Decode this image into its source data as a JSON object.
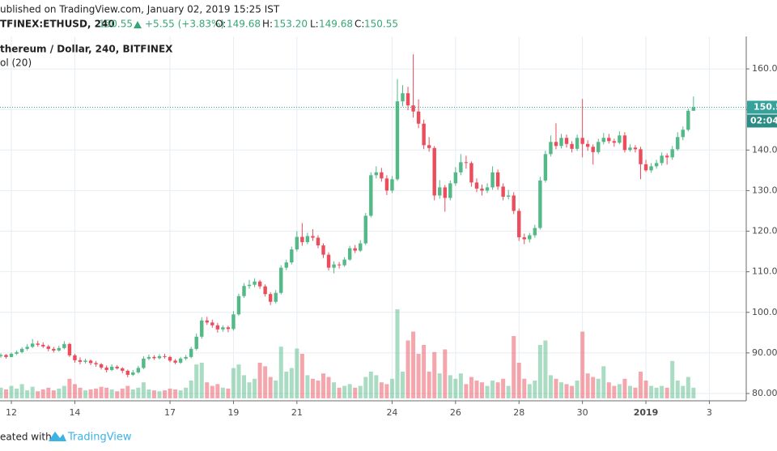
{
  "header": {
    "published": "ublished on TradingView.com, January 02, 2019 15:25 IST",
    "symbol": "TFINEX:ETHUSD, 240",
    "price": "150.55",
    "change": "+5.55 (+3.83%)",
    "ohlc": [
      {
        "key": "O:",
        "value": "149.68"
      },
      {
        "key": "H:",
        "value": "153.20"
      },
      {
        "key": "L:",
        "value": "149.68"
      },
      {
        "key": "C:",
        "value": "150.55"
      }
    ]
  },
  "footer": {
    "text": "eated with",
    "brand": "TradingView"
  },
  "chart_data": {
    "type": "candlestick",
    "title": "thereum / Dollar, 240, BITFINEX",
    "volume_label": "ol (20)",
    "up_color": "#53b987",
    "down_color": "#eb4d5c",
    "grid": true,
    "countdown": "02:04:",
    "xlim": [
      -8.6,
      555.9
    ],
    "ylim": [
      78.2,
      168
    ],
    "volume_lim": [
      0,
      100
    ],
    "xticks": [
      {
        "value": 0,
        "label": "12"
      },
      {
        "value": 48,
        "label": "14"
      },
      {
        "value": 120,
        "label": "17"
      },
      {
        "value": 168,
        "label": "19"
      },
      {
        "value": 216,
        "label": "21"
      },
      {
        "value": 288,
        "label": "24"
      },
      {
        "value": 336,
        "label": "26"
      },
      {
        "value": 384,
        "label": "28"
      },
      {
        "value": 432,
        "label": "30"
      },
      {
        "value": 480,
        "label": "2019"
      },
      {
        "value": 528,
        "label": "3"
      }
    ],
    "yticks": [
      {
        "value": 80,
        "label": "80.00"
      },
      {
        "value": 90,
        "label": "90.00"
      },
      {
        "value": 100,
        "label": "100.00"
      },
      {
        "value": 110,
        "label": "110.00"
      },
      {
        "value": 120,
        "label": "120.00"
      },
      {
        "value": 130,
        "label": "130.00"
      },
      {
        "value": 140,
        "label": "140.00"
      },
      {
        "value": 150,
        "label": "150.00"
      },
      {
        "value": 160,
        "label": "160.00"
      }
    ],
    "candles": [
      [
        -8,
        89.2,
        89.9,
        88.8,
        89.5,
        12
      ],
      [
        -4,
        89.5,
        89.7,
        88.6,
        89.0,
        10
      ],
      [
        0,
        89.0,
        90.1,
        88.9,
        89.8,
        14
      ],
      [
        4,
        89.8,
        90.6,
        89.5,
        90.2,
        11
      ],
      [
        8,
        90.2,
        91.4,
        89.9,
        91.0,
        16
      ],
      [
        12,
        91.0,
        92.2,
        90.6,
        91.5,
        9
      ],
      [
        16,
        91.5,
        93.4,
        91.2,
        92.3,
        13
      ],
      [
        20,
        92.3,
        93.0,
        91.5,
        92.0,
        8
      ],
      [
        24,
        92.0,
        92.6,
        91.2,
        91.6,
        10
      ],
      [
        28,
        91.6,
        92.0,
        90.4,
        91.0,
        12
      ],
      [
        32,
        91.0,
        91.5,
        90.1,
        90.6,
        9
      ],
      [
        36,
        90.6,
        91.8,
        90.3,
        91.2,
        11
      ],
      [
        40,
        91.2,
        92.9,
        90.9,
        92.2,
        14
      ],
      [
        44,
        92.2,
        92.5,
        89.0,
        89.4,
        22
      ],
      [
        48,
        89.4,
        89.8,
        87.6,
        88.2,
        16
      ],
      [
        52,
        88.2,
        88.9,
        87.2,
        87.8,
        12
      ],
      [
        56,
        87.8,
        88.6,
        87.4,
        88.1,
        9
      ],
      [
        60,
        88.1,
        88.4,
        87.0,
        87.5,
        10
      ],
      [
        64,
        87.5,
        88.0,
        86.6,
        87.2,
        11
      ],
      [
        68,
        87.2,
        87.5,
        85.9,
        86.4,
        13
      ],
      [
        72,
        86.4,
        86.9,
        85.2,
        85.8,
        12
      ],
      [
        76,
        85.8,
        87.2,
        85.5,
        86.6,
        10
      ],
      [
        80,
        86.6,
        87.0,
        85.9,
        86.2,
        8
      ],
      [
        84,
        86.2,
        86.5,
        85.0,
        85.6,
        11
      ],
      [
        88,
        85.6,
        85.9,
        84.0,
        84.6,
        14
      ],
      [
        92,
        84.6,
        85.8,
        84.3,
        85.2,
        10
      ],
      [
        96,
        85.2,
        86.8,
        84.9,
        86.3,
        12
      ],
      [
        100,
        86.3,
        89.2,
        86.0,
        88.6,
        18
      ],
      [
        104,
        88.6,
        89.6,
        88.2,
        89.0,
        10
      ],
      [
        108,
        89.0,
        89.4,
        88.3,
        88.7,
        9
      ],
      [
        112,
        88.7,
        89.7,
        88.4,
        89.2,
        8
      ],
      [
        116,
        89.2,
        89.8,
        88.6,
        89.0,
        9
      ],
      [
        120,
        89.0,
        89.3,
        87.7,
        88.1,
        11
      ],
      [
        124,
        88.1,
        88.5,
        87.2,
        87.6,
        10
      ],
      [
        128,
        87.6,
        89.0,
        87.3,
        88.6,
        9
      ],
      [
        132,
        88.6,
        89.5,
        88.2,
        89.0,
        12
      ],
      [
        136,
        89.0,
        91.5,
        88.7,
        91.0,
        20
      ],
      [
        140,
        91.0,
        94.8,
        90.6,
        94.0,
        38
      ],
      [
        144,
        94.0,
        98.8,
        93.5,
        98.0,
        40
      ],
      [
        148,
        98.0,
        98.9,
        96.9,
        97.5,
        18
      ],
      [
        152,
        97.5,
        98.2,
        96.2,
        96.8,
        14
      ],
      [
        156,
        96.8,
        97.4,
        95.0,
        95.8,
        16
      ],
      [
        160,
        95.8,
        96.8,
        95.2,
        96.3,
        12
      ],
      [
        164,
        96.3,
        96.7,
        95.1,
        95.9,
        11
      ],
      [
        168,
        95.9,
        100.3,
        95.5,
        99.5,
        34
      ],
      [
        172,
        99.5,
        104.6,
        99.2,
        104.0,
        38
      ],
      [
        176,
        104.0,
        107.2,
        103.6,
        106.5,
        26
      ],
      [
        180,
        106.5,
        108.0,
        105.8,
        106.8,
        18
      ],
      [
        184,
        106.8,
        108.4,
        106.2,
        107.6,
        22
      ],
      [
        188,
        107.6,
        108.0,
        105.8,
        106.4,
        40
      ],
      [
        192,
        106.4,
        106.9,
        103.9,
        104.5,
        36
      ],
      [
        196,
        104.5,
        105.0,
        101.8,
        102.6,
        24
      ],
      [
        200,
        102.6,
        105.5,
        102.2,
        104.8,
        20
      ],
      [
        204,
        104.8,
        111.6,
        104.4,
        111.0,
        58
      ],
      [
        208,
        111.0,
        113.0,
        110.4,
        112.3,
        30
      ],
      [
        212,
        112.3,
        116.2,
        111.8,
        115.5,
        34
      ],
      [
        216,
        115.5,
        120.0,
        115.0,
        118.6,
        56
      ],
      [
        220,
        118.6,
        122.0,
        116.4,
        117.3,
        50
      ],
      [
        224,
        117.3,
        119.6,
        116.8,
        118.8,
        26
      ],
      [
        228,
        118.8,
        120.5,
        117.6,
        118.4,
        22
      ],
      [
        232,
        118.4,
        119.0,
        115.8,
        116.5,
        20
      ],
      [
        236,
        116.5,
        117.0,
        113.4,
        114.2,
        28
      ],
      [
        240,
        114.2,
        114.8,
        110.3,
        111.0,
        24
      ],
      [
        244,
        111.0,
        112.6,
        109.6,
        111.8,
        18
      ],
      [
        248,
        111.8,
        112.4,
        110.8,
        111.6,
        12
      ],
      [
        252,
        111.6,
        113.6,
        111.2,
        113.0,
        14
      ],
      [
        256,
        113.0,
        116.4,
        112.7,
        115.8,
        16
      ],
      [
        260,
        115.8,
        116.6,
        114.6,
        115.2,
        12
      ],
      [
        264,
        115.2,
        117.8,
        114.9,
        117.0,
        14
      ],
      [
        268,
        117.0,
        124.5,
        116.6,
        123.8,
        24
      ],
      [
        272,
        123.8,
        134.5,
        123.4,
        133.8,
        30
      ],
      [
        276,
        133.8,
        136.0,
        133.0,
        134.5,
        26
      ],
      [
        280,
        134.5,
        135.6,
        132.2,
        133.0,
        18
      ],
      [
        284,
        133.0,
        133.8,
        128.9,
        130.0,
        16
      ],
      [
        288,
        130.0,
        133.6,
        129.4,
        132.8,
        22
      ],
      [
        292,
        132.8,
        157.5,
        132.4,
        152.0,
        100
      ],
      [
        296,
        152.0,
        156.0,
        150.8,
        154.0,
        30
      ],
      [
        300,
        154.0,
        155.6,
        149.8,
        151.0,
        65
      ],
      [
        304,
        151.0,
        163.6,
        148.0,
        149.5,
        75
      ],
      [
        308,
        149.5,
        152.5,
        145.4,
        146.5,
        50
      ],
      [
        312,
        146.5,
        147.5,
        140.2,
        141.2,
        60
      ],
      [
        316,
        141.2,
        143.2,
        139.6,
        140.5,
        30
      ],
      [
        320,
        140.5,
        141.0,
        127.6,
        128.8,
        52
      ],
      [
        324,
        128.8,
        132.6,
        128.0,
        130.8,
        28
      ],
      [
        328,
        130.8,
        131.4,
        124.8,
        128.2,
        55
      ],
      [
        332,
        128.2,
        132.5,
        127.6,
        131.8,
        26
      ],
      [
        336,
        131.8,
        135.8,
        131.2,
        134.5,
        22
      ],
      [
        340,
        134.5,
        139.0,
        133.8,
        137.0,
        28
      ],
      [
        344,
        137.0,
        138.6,
        135.4,
        136.8,
        16
      ],
      [
        348,
        136.8,
        137.2,
        131.0,
        132.0,
        24
      ],
      [
        352,
        132.0,
        133.0,
        129.6,
        130.5,
        20
      ],
      [
        356,
        130.5,
        131.5,
        128.8,
        130.0,
        18
      ],
      [
        360,
        130.0,
        131.8,
        129.4,
        130.8,
        14
      ],
      [
        364,
        130.8,
        136.0,
        130.2,
        134.5,
        20
      ],
      [
        368,
        134.5,
        135.2,
        130.2,
        131.0,
        18
      ],
      [
        372,
        131.0,
        131.8,
        127.6,
        128.5,
        22
      ],
      [
        376,
        128.5,
        130.2,
        127.8,
        128.8,
        14
      ],
      [
        380,
        128.8,
        129.6,
        124.2,
        125.0,
        70
      ],
      [
        384,
        125.0,
        125.6,
        117.6,
        118.5,
        40
      ],
      [
        388,
        118.5,
        119.4,
        116.8,
        118.0,
        22
      ],
      [
        392,
        118.0,
        119.6,
        117.2,
        119.0,
        16
      ],
      [
        396,
        119.0,
        121.6,
        118.4,
        120.8,
        20
      ],
      [
        400,
        120.8,
        133.4,
        120.4,
        132.5,
        60
      ],
      [
        404,
        132.5,
        139.8,
        132.0,
        139.0,
        65
      ],
      [
        408,
        139.0,
        143.6,
        138.4,
        142.0,
        26
      ],
      [
        412,
        142.0,
        146.6,
        140.2,
        141.0,
        22
      ],
      [
        416,
        141.0,
        144.0,
        140.4,
        143.0,
        18
      ],
      [
        420,
        143.0,
        143.8,
        140.6,
        141.5,
        16
      ],
      [
        424,
        141.5,
        142.2,
        139.4,
        140.3,
        14
      ],
      [
        428,
        140.3,
        143.8,
        139.8,
        143.0,
        20
      ],
      [
        432,
        143.0,
        152.6,
        138.2,
        141.5,
        75
      ],
      [
        436,
        141.5,
        142.4,
        139.8,
        140.8,
        28
      ],
      [
        440,
        140.8,
        141.4,
        136.4,
        139.5,
        24
      ],
      [
        444,
        139.5,
        142.8,
        139.0,
        142.0,
        22
      ],
      [
        448,
        142.0,
        144.2,
        141.4,
        143.0,
        36
      ],
      [
        452,
        143.0,
        144.0,
        141.6,
        142.2,
        18
      ],
      [
        456,
        142.2,
        142.8,
        140.8,
        141.8,
        14
      ],
      [
        460,
        141.8,
        144.6,
        141.4,
        143.6,
        16
      ],
      [
        464,
        143.6,
        144.4,
        139.4,
        140.0,
        22
      ],
      [
        468,
        140.0,
        141.4,
        139.6,
        140.6,
        14
      ],
      [
        472,
        140.6,
        141.2,
        139.4,
        140.2,
        12
      ],
      [
        476,
        140.2,
        140.8,
        132.8,
        136.5,
        30
      ],
      [
        480,
        136.5,
        137.6,
        134.6,
        135.0,
        20
      ],
      [
        484,
        135.0,
        136.8,
        134.4,
        136.0,
        14
      ],
      [
        488,
        136.0,
        137.6,
        135.4,
        136.8,
        12
      ],
      [
        492,
        136.8,
        139.4,
        136.2,
        138.6,
        14
      ],
      [
        496,
        138.6,
        139.2,
        136.4,
        138.2,
        12
      ],
      [
        500,
        138.2,
        141.0,
        137.6,
        140.2,
        42
      ],
      [
        504,
        140.2,
        144.4,
        139.8,
        143.2,
        20
      ],
      [
        508,
        143.2,
        145.8,
        142.4,
        145.0,
        14
      ],
      [
        512,
        145.0,
        150.2,
        144.6,
        149.68,
        24
      ],
      [
        516,
        149.68,
        153.2,
        149.68,
        150.55,
        12
      ]
    ]
  }
}
